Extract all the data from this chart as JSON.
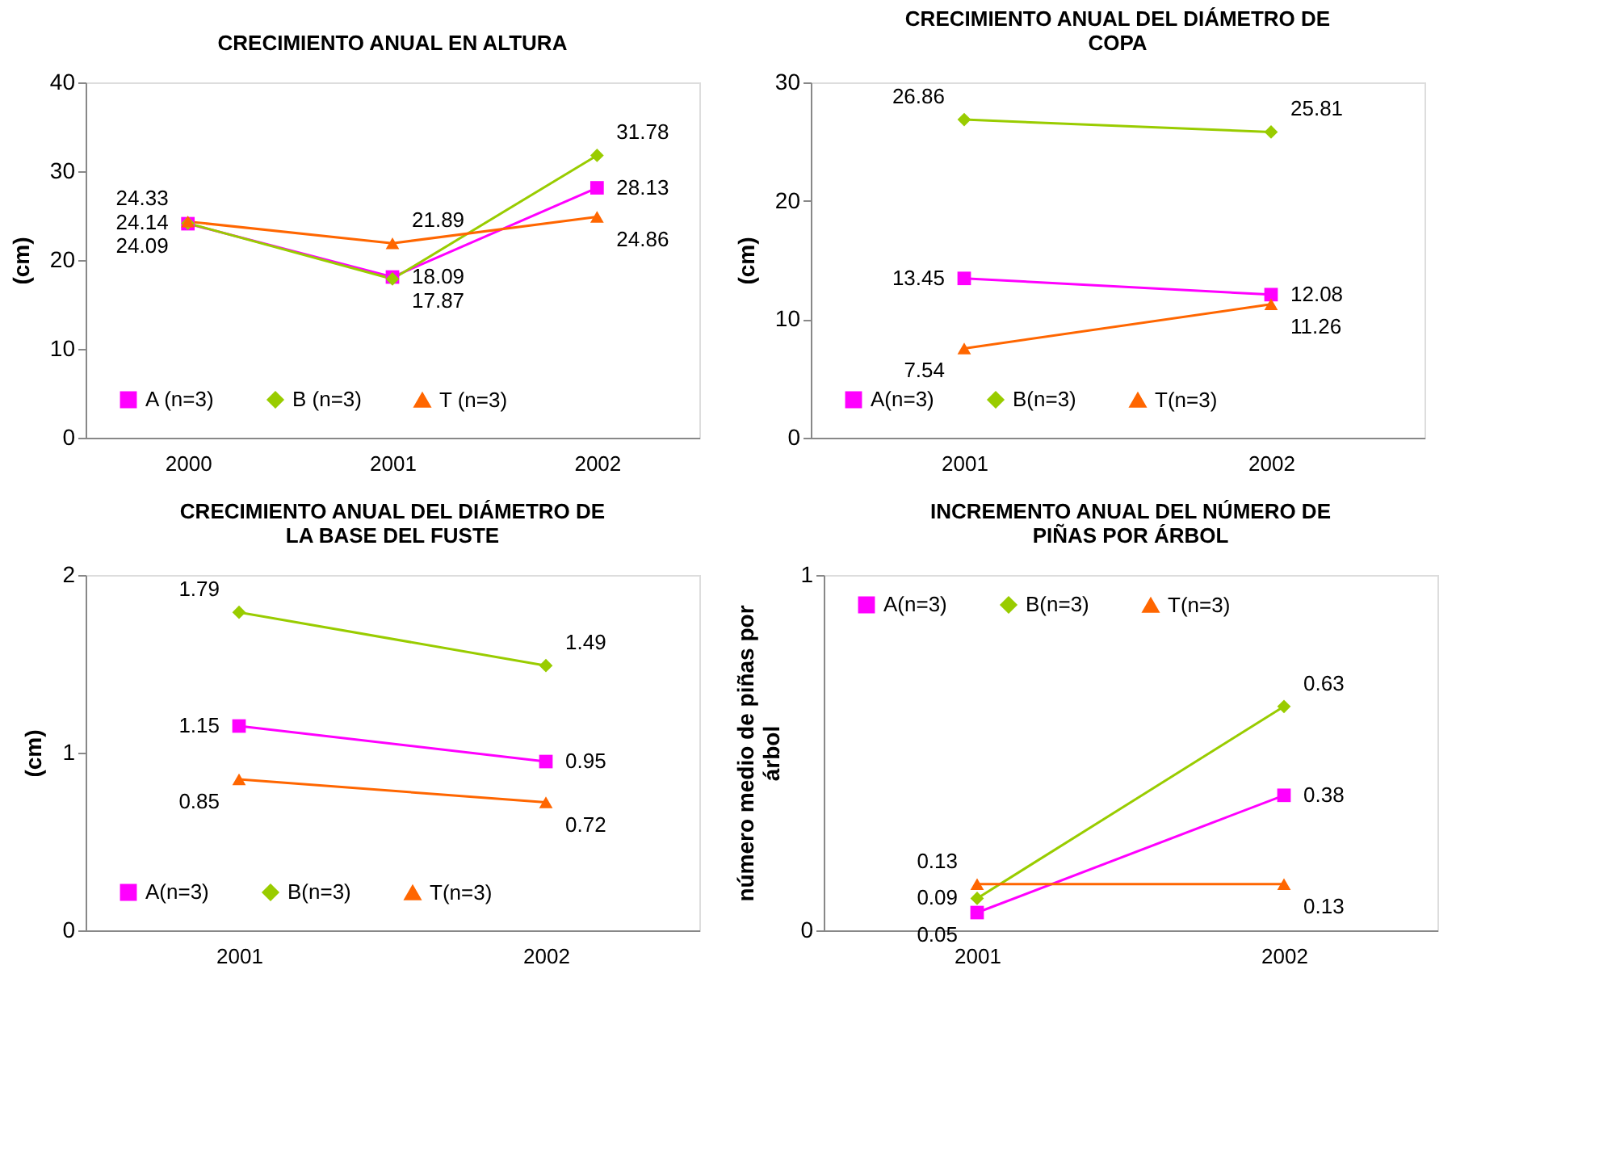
{
  "chart_data": [
    {
      "type": "line",
      "title": "CRECIMIENTO ANUAL EN ALTURA",
      "ylabel": "(cm)",
      "categories": [
        "2000",
        "2001",
        "2002"
      ],
      "ylim": [
        0,
        40
      ],
      "yticks": [
        0,
        10,
        20,
        30,
        40
      ],
      "data_labels": true,
      "legend": "bottom",
      "grid": false,
      "series": [
        {
          "name": "A (n=3)",
          "color": "#ff00ff",
          "marker": "square",
          "values": [
            24.09,
            18.09,
            28.13
          ]
        },
        {
          "name": "B (n=3)",
          "color": "#99cc00",
          "marker": "diamond",
          "values": [
            24.14,
            17.87,
            31.78
          ]
        },
        {
          "name": "T (n=3)",
          "color": "#ff6600",
          "marker": "triangle",
          "values": [
            24.33,
            21.89,
            24.86
          ]
        }
      ]
    },
    {
      "type": "line",
      "title": "CRECIMIENTO ANUAL DEL DIÁMETRO DE COPA",
      "ylabel": "(cm)",
      "categories": [
        "2001",
        "2002"
      ],
      "ylim": [
        0,
        30
      ],
      "yticks": [
        0,
        10,
        20,
        30
      ],
      "data_labels": true,
      "legend": "bottom",
      "grid": false,
      "series": [
        {
          "name": "A(n=3)",
          "color": "#ff00ff",
          "marker": "square",
          "values": [
            13.45,
            12.08
          ]
        },
        {
          "name": "B(n=3)",
          "color": "#99cc00",
          "marker": "diamond",
          "values": [
            26.86,
            25.81
          ]
        },
        {
          "name": "T(n=3)",
          "color": "#ff6600",
          "marker": "triangle",
          "values": [
            7.54,
            11.26
          ]
        }
      ]
    },
    {
      "type": "line",
      "title": "CRECIMIENTO ANUAL DEL DIÁMETRO DE LA BASE DEL FUSTE",
      "ylabel": "(cm)",
      "categories": [
        "2001",
        "2002"
      ],
      "ylim": [
        0,
        2
      ],
      "yticks": [
        0,
        1,
        2
      ],
      "data_labels": true,
      "legend": "bottom",
      "grid": false,
      "series": [
        {
          "name": "A(n=3)",
          "color": "#ff00ff",
          "marker": "square",
          "values": [
            1.15,
            0.95
          ]
        },
        {
          "name": "B(n=3)",
          "color": "#99cc00",
          "marker": "diamond",
          "values": [
            1.79,
            1.49
          ]
        },
        {
          "name": "T(n=3)",
          "color": "#ff6600",
          "marker": "triangle",
          "values": [
            0.85,
            0.72
          ]
        }
      ]
    },
    {
      "type": "line",
      "title": "INCREMENTO ANUAL DEL NÚMERO DE PIÑAS POR ÁRBOL",
      "ylabel": "número medio de piñas por árbol",
      "categories": [
        "2001",
        "2002"
      ],
      "ylim": [
        0,
        1
      ],
      "yticks": [
        0,
        1
      ],
      "data_labels": true,
      "legend": "top",
      "grid": false,
      "series": [
        {
          "name": "A(n=3)",
          "color": "#ff00ff",
          "marker": "square",
          "values": [
            0.05,
            0.38
          ]
        },
        {
          "name": "B(n=3)",
          "color": "#99cc00",
          "marker": "diamond",
          "values": [
            0.09,
            0.63
          ]
        },
        {
          "name": "T(n=3)",
          "color": "#ff6600",
          "marker": "triangle",
          "values": [
            0.13,
            0.13
          ]
        }
      ]
    }
  ]
}
